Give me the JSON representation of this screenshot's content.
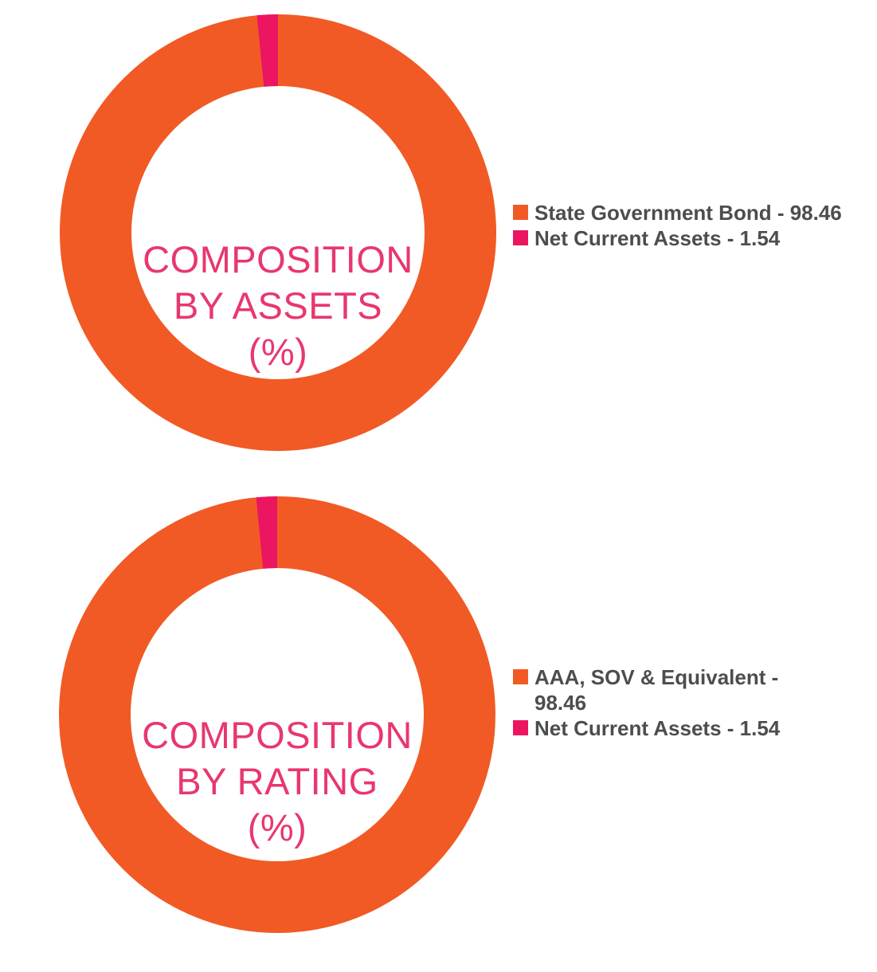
{
  "page": {
    "background_color": "#FFFFFF"
  },
  "colors": {
    "orange": "#F15A25",
    "pink": "#EC1561",
    "center_title_pink": "#E8376E",
    "legend_text_gray": "#4D4D4F"
  },
  "chart_data": [
    {
      "type": "pie",
      "subtype": "donut",
      "title": "COMPOSITION BY ASSETS (%)",
      "center_label_lines": [
        "COMPOSITION",
        "BY ASSETS",
        "(%)"
      ],
      "labels": [
        "State Government Bond",
        "Net Current Assets"
      ],
      "values": [
        98.46,
        1.54
      ],
      "colors": [
        "#F15A25",
        "#EC1561"
      ],
      "legend_entries": [
        "State Government Bond - 98.46",
        "Net Current Assets - 1.54"
      ],
      "legend_position": "right",
      "start_angle_deg": 0,
      "direction": "clockwise",
      "donut_hole_ratio": 0.67
    },
    {
      "type": "pie",
      "subtype": "donut",
      "title": "COMPOSITION BY RATING (%)",
      "center_label_lines": [
        "COMPOSITION",
        "BY RATING",
        "(%)"
      ],
      "labels": [
        "AAA, SOV & Equivalent",
        "Net Current Assets"
      ],
      "values": [
        98.46,
        1.54
      ],
      "colors": [
        "#F15A25",
        "#EC1561"
      ],
      "legend_entries": [
        "AAA, SOV & Equivalent - 98.46",
        "Net Current Assets - 1.54"
      ],
      "legend_position": "right",
      "start_angle_deg": 0,
      "direction": "clockwise",
      "donut_hole_ratio": 0.67
    }
  ]
}
